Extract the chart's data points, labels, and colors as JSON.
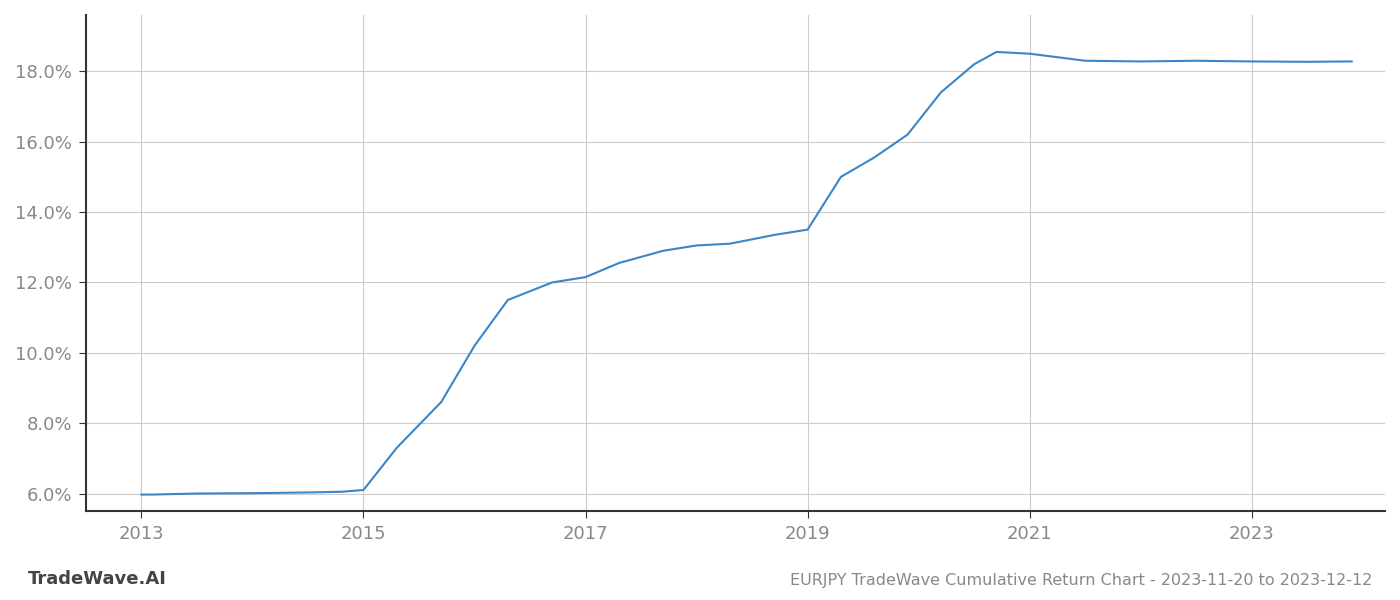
{
  "x_years": [
    2013.0,
    2013.1,
    2013.5,
    2014.0,
    2014.5,
    2014.8,
    2015.0,
    2015.3,
    2015.7,
    2016.0,
    2016.3,
    2016.7,
    2017.0,
    2017.3,
    2017.7,
    2018.0,
    2018.3,
    2018.7,
    2019.0,
    2019.3,
    2019.6,
    2019.9,
    2020.2,
    2020.5,
    2020.7,
    2021.0,
    2021.5,
    2022.0,
    2022.5,
    2023.0,
    2023.5,
    2023.9
  ],
  "y_values": [
    5.97,
    5.97,
    6.0,
    6.01,
    6.03,
    6.05,
    6.1,
    7.3,
    8.6,
    10.2,
    11.5,
    12.0,
    12.15,
    12.55,
    12.9,
    13.05,
    13.1,
    13.35,
    13.5,
    15.0,
    15.55,
    16.2,
    17.4,
    18.2,
    18.55,
    18.5,
    18.3,
    18.28,
    18.3,
    18.28,
    18.27,
    18.28
  ],
  "line_color": "#3a86c8",
  "line_width": 1.5,
  "background_color": "#ffffff",
  "grid_color": "#cccccc",
  "title": "EURJPY TradeWave Cumulative Return Chart - 2023-11-20 to 2023-12-12",
  "watermark": "TradeWave.AI",
  "x_ticks": [
    2013,
    2015,
    2017,
    2019,
    2021,
    2023
  ],
  "x_tick_labels": [
    "2013",
    "2015",
    "2017",
    "2019",
    "2021",
    "2023"
  ],
  "y_ticks": [
    6.0,
    8.0,
    10.0,
    12.0,
    14.0,
    16.0,
    18.0
  ],
  "y_tick_labels": [
    "6.0%",
    "8.0%",
    "10.0%",
    "12.0%",
    "14.0%",
    "16.0%",
    "18.0%"
  ],
  "xlim": [
    2012.5,
    2024.2
  ],
  "ylim": [
    5.5,
    19.6
  ],
  "tick_fontsize": 13,
  "title_fontsize": 11.5,
  "watermark_fontsize": 13
}
